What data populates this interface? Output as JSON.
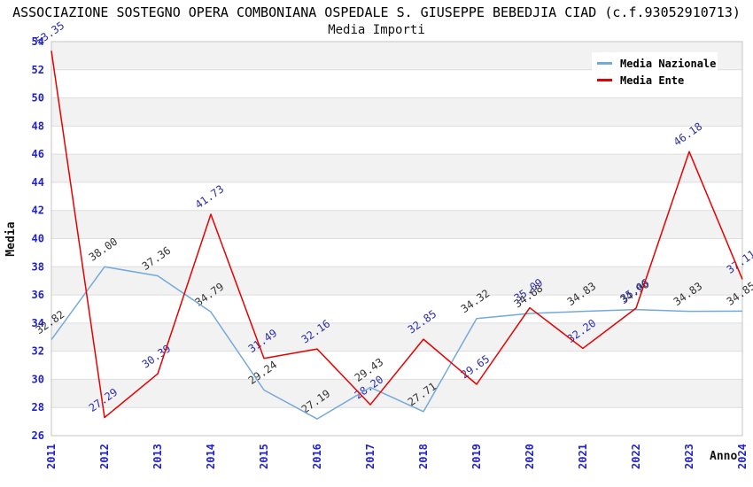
{
  "header": {
    "title": "ASSOCIAZIONE SOSTEGNO OPERA COMBONIANA OSPEDALE S. GIUSEPPE BEBEDJIA CIAD (c.f.93052910713)",
    "subtitle": "Media Importi"
  },
  "chart_data": {
    "type": "line",
    "title": "ASSOCIAZIONE SOSTEGNO OPERA COMBONIANA OSPEDALE S. GIUSEPPE BEBEDJIA CIAD (c.f.93052910713)",
    "subtitle": "Media Importi",
    "xlabel": "Anno",
    "ylabel": "Media",
    "categories": [
      "2011",
      "2012",
      "2013",
      "2014",
      "2015",
      "2016",
      "2017",
      "2018",
      "2019",
      "2020",
      "2021",
      "2022",
      "2023",
      "2024"
    ],
    "series": [
      {
        "name": "Media Nazionale",
        "color": "#74a9dc",
        "label_color": "#333333",
        "values": [
          32.82,
          38.0,
          37.36,
          34.79,
          29.24,
          27.19,
          29.43,
          27.71,
          34.32,
          34.68,
          34.83,
          34.96,
          34.83,
          34.85
        ]
      },
      {
        "name": "Media Ente",
        "color": "#e60000",
        "label_color": "#2e2ea8",
        "values": [
          53.35,
          27.29,
          30.39,
          41.73,
          31.49,
          32.16,
          28.2,
          32.85,
          29.65,
          35.09,
          32.2,
          35.06,
          46.18,
          37.11
        ]
      }
    ],
    "ylim": [
      26,
      54
    ],
    "ytick_step": 2,
    "grid": "horizontal",
    "legend_position": "top-right",
    "colors": {
      "tick_label": "#2222cc",
      "band_fill": "#f2f2f2",
      "grid_line": "#dddddd",
      "frame": "#c4c4c4",
      "background": "#ffffff"
    }
  }
}
